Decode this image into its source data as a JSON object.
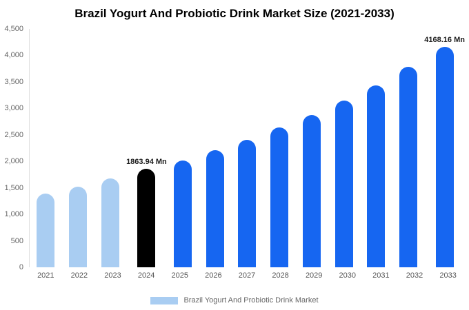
{
  "title": "Brazil Yogurt And Probiotic Drink Market Size (2021-2033)",
  "legend": {
    "label": "Brazil Yogurt And Probiotic Drink Market",
    "swatch_color": "#A9CDF2"
  },
  "colors": {
    "historical": "#A9CDF2",
    "base_year": "#000000",
    "forecast": "#1666F1"
  },
  "chart_data": {
    "type": "bar",
    "title": "Brazil Yogurt And Probiotic Drink Market Size (2021-2033)",
    "xlabel": "",
    "ylabel": "",
    "categories": [
      "2021",
      "2022",
      "2023",
      "2024",
      "2025",
      "2026",
      "2027",
      "2028",
      "2029",
      "2030",
      "2031",
      "2032",
      "2033"
    ],
    "values": [
      1390,
      1520,
      1680,
      1863.94,
      2010,
      2210,
      2400,
      2640,
      2870,
      3150,
      3440,
      3780,
      4168.16
    ],
    "point_labels": [
      null,
      null,
      null,
      "1863.94 Mn",
      null,
      null,
      null,
      null,
      null,
      null,
      null,
      null,
      "4168.16 Mn"
    ],
    "bar_colors": [
      "#A9CDF2",
      "#A9CDF2",
      "#A9CDF2",
      "#000000",
      "#1666F1",
      "#1666F1",
      "#1666F1",
      "#1666F1",
      "#1666F1",
      "#1666F1",
      "#1666F1",
      "#1666F1",
      "#1666F1"
    ],
    "ylim": [
      0,
      4500
    ],
    "ytick_values": [
      0,
      500,
      1000,
      1500,
      2000,
      2500,
      3000,
      3500,
      4000,
      4500
    ],
    "ytick_labels": [
      "0",
      "500",
      "1,000",
      "1,500",
      "2,000",
      "2,500",
      "3,000",
      "3,500",
      "4,000",
      "4,500"
    ],
    "grid": false,
    "legend_position": "bottom",
    "legend_entries": [
      "Brazil Yogurt And Probiotic Drink Market"
    ]
  }
}
